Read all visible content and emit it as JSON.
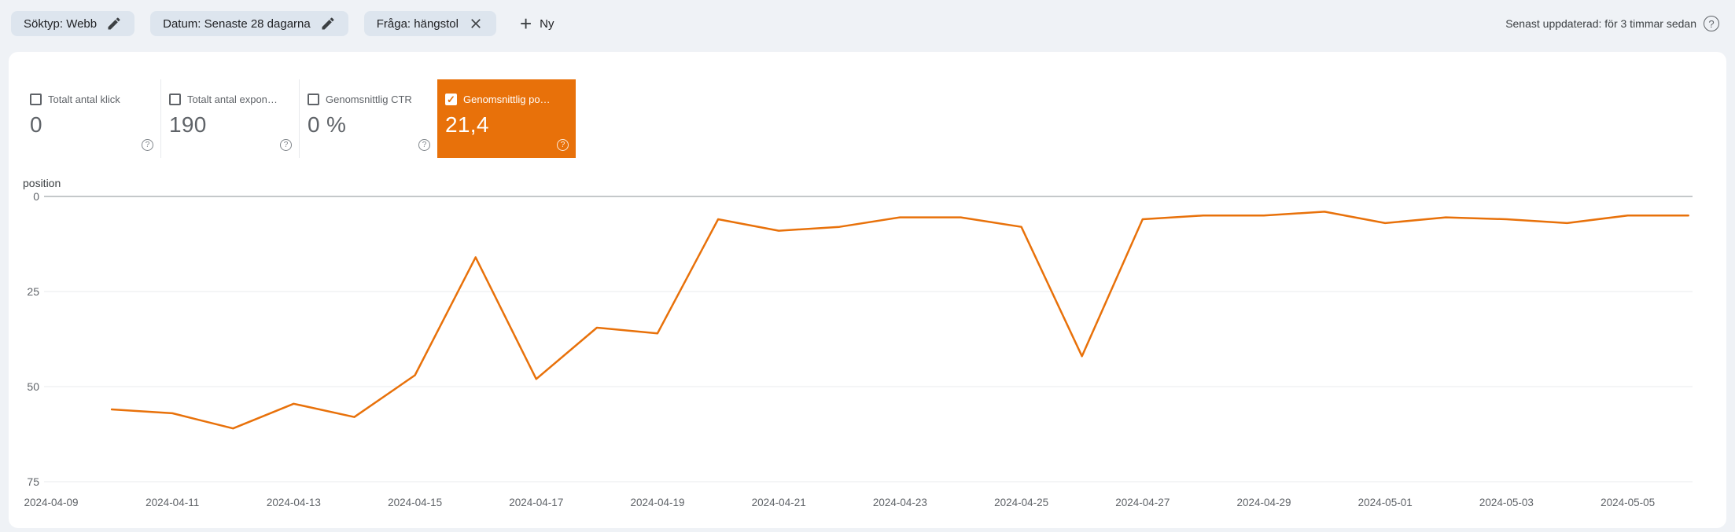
{
  "topbar": {
    "chips": [
      {
        "label": "Söktyp: Webb",
        "action_icon": "edit"
      },
      {
        "label": "Datum: Senaste 28 dagarna",
        "action_icon": "edit"
      },
      {
        "label": "Fråga: hängstol",
        "action_icon": "close"
      }
    ],
    "new_filter_label": "Ny",
    "last_updated": "Senast uppdaterad: för 3 timmar sedan"
  },
  "metrics": [
    {
      "label": "Totalt antal klick",
      "value": "0",
      "selected": false
    },
    {
      "label": "Totalt antal expon…",
      "value": "190",
      "selected": false
    },
    {
      "label": "Genomsnittlig CTR",
      "value": "0 %",
      "selected": false
    },
    {
      "label": "Genomsnittlig po…",
      "value": "21,4",
      "selected": true,
      "accent_color": "#e8710a"
    }
  ],
  "chart_data": {
    "type": "line",
    "title": "",
    "ylabel": "position",
    "y_ticks": [
      0,
      25,
      50,
      75
    ],
    "y_range": [
      0,
      75
    ],
    "y_inverted": true,
    "grid": true,
    "x_axis_start": "2024-04-09",
    "x_tick_labels": [
      "2024-04-09",
      "2024-04-11",
      "2024-04-13",
      "2024-04-15",
      "2024-04-17",
      "2024-04-19",
      "2024-04-21",
      "2024-04-23",
      "2024-04-25",
      "2024-04-27",
      "2024-04-29",
      "2024-05-01",
      "2024-05-03",
      "2024-05-05"
    ],
    "series": [
      {
        "name": "Genomsnittlig position",
        "color": "#e8710a",
        "start_day_offset": 1,
        "dates": [
          "2024-04-10",
          "2024-04-11",
          "2024-04-12",
          "2024-04-13",
          "2024-04-14",
          "2024-04-15",
          "2024-04-16",
          "2024-04-17",
          "2024-04-18",
          "2024-04-19",
          "2024-04-20",
          "2024-04-21",
          "2024-04-22",
          "2024-04-23",
          "2024-04-24",
          "2024-04-25",
          "2024-04-26",
          "2024-04-27",
          "2024-04-28",
          "2024-04-29",
          "2024-04-30",
          "2024-05-01",
          "2024-05-02",
          "2024-05-03",
          "2024-05-04",
          "2024-05-05",
          "2024-05-06"
        ],
        "values": [
          56,
          57,
          61,
          54.5,
          58,
          47,
          16,
          48,
          34.5,
          36,
          6,
          9,
          8,
          5.5,
          5.5,
          8,
          42,
          6,
          5,
          5,
          4,
          7,
          5.5,
          6,
          7,
          5,
          5
        ]
      }
    ]
  }
}
